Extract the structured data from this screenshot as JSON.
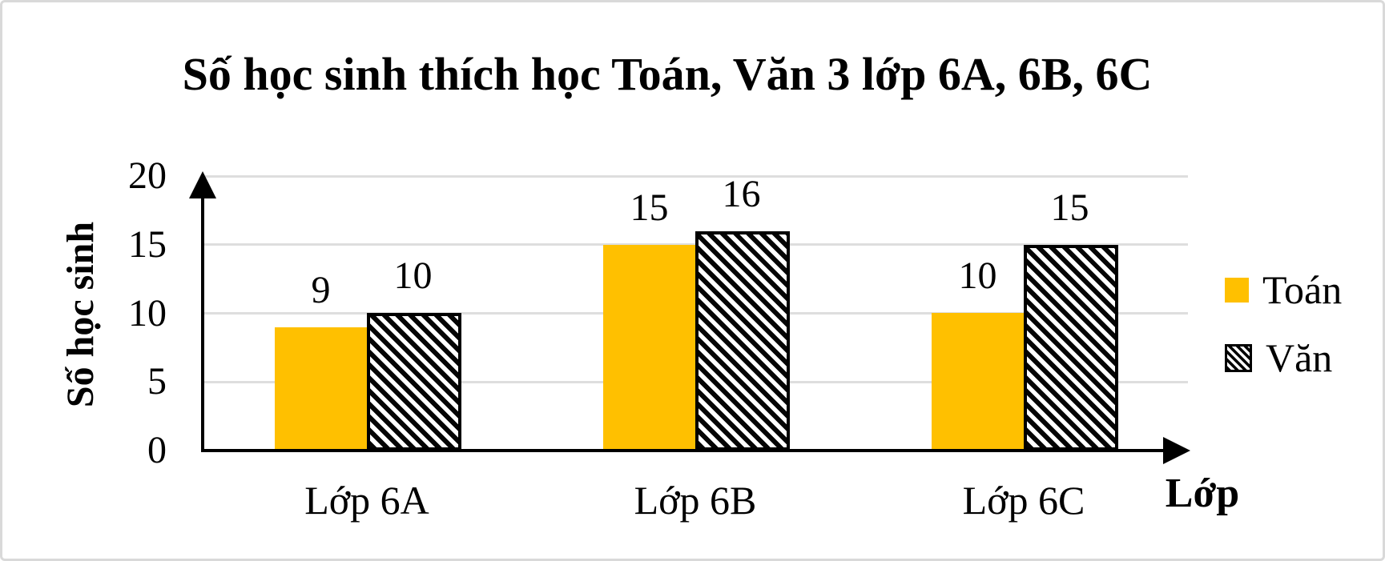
{
  "window": {
    "background": "#ffffff",
    "border_color": "#d9d9d9"
  },
  "chart_data": {
    "type": "bar",
    "title": "Số học sinh thích học Toán, Văn 3 lớp 6A, 6B, 6C",
    "categories": [
      "Lớp 6A",
      "Lớp 6B",
      "Lớp 6C"
    ],
    "series": [
      {
        "name": "Toán",
        "values": [
          9,
          15,
          10
        ],
        "style": "solid",
        "color": "#FFC000"
      },
      {
        "name": "Văn",
        "values": [
          10,
          16,
          15
        ],
        "style": "diagonal-hatch",
        "color": "#000000"
      }
    ],
    "ylabel": "Số học sinh",
    "xlabel": "Lớp",
    "yticks": [
      0,
      5,
      10,
      15,
      20
    ],
    "ylim": [
      0,
      20
    ],
    "grid": true,
    "gridline_color": "#dedede",
    "axis_color": "#000000",
    "legend_position": "right",
    "data_labels": true
  }
}
